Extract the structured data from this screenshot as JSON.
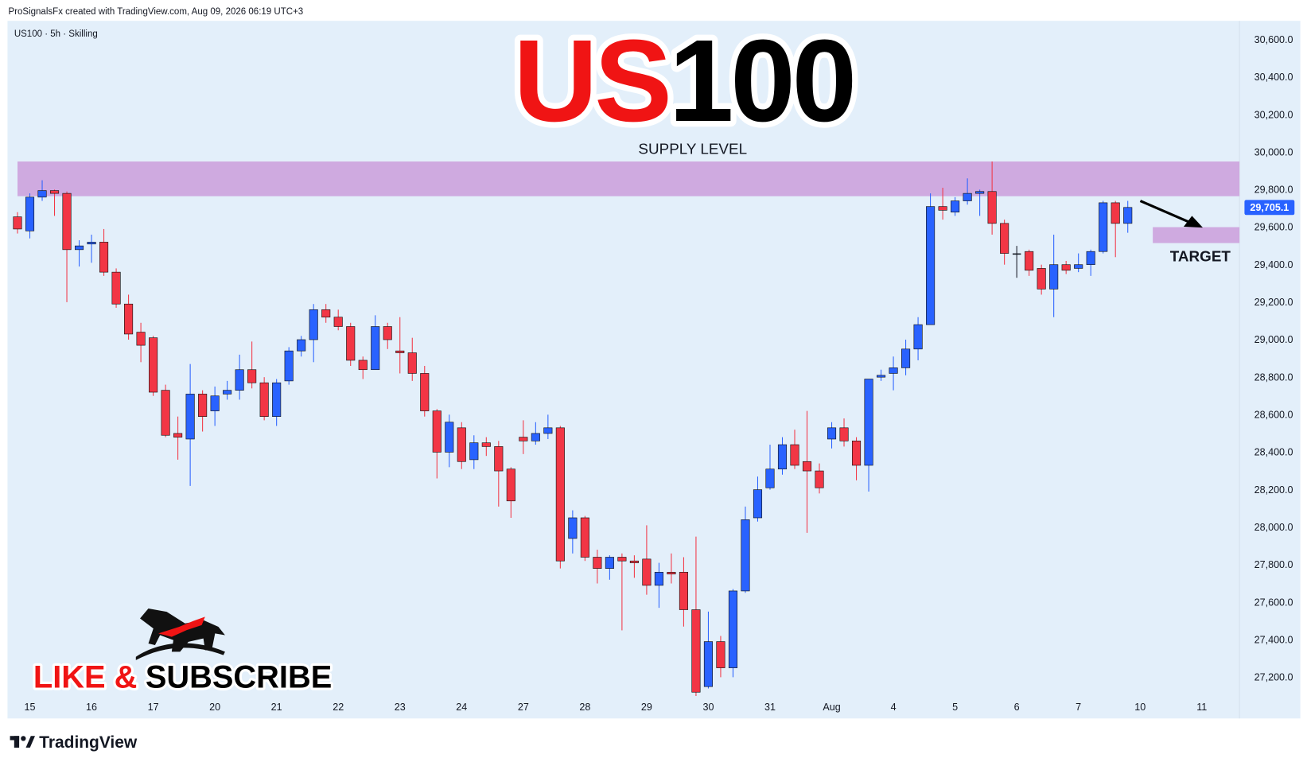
{
  "header": "ProSignalsFx created with TradingView.com, Aug 09, 2026 06:19 UTC+3",
  "symbol": "US100 · 5h · Skilling",
  "title_red": "US",
  "title_black": "100",
  "like": "LIKE &",
  "subscribe": "SUBSCRIBE",
  "brand": "TradingView",
  "chart_data": {
    "type": "candlestick",
    "up_color": "#2962ff",
    "down_color": "#f23645",
    "doji_color": "#131722",
    "grid": false,
    "categories": [
      null,
      "15",
      null,
      null,
      null,
      null,
      "16",
      null,
      null,
      null,
      null,
      "17",
      null,
      null,
      null,
      null,
      "20",
      null,
      null,
      null,
      null,
      "21",
      null,
      null,
      null,
      null,
      "22",
      null,
      null,
      null,
      null,
      "23",
      null,
      null,
      null,
      null,
      "24",
      null,
      null,
      null,
      null,
      "27",
      null,
      null,
      null,
      null,
      "28",
      null,
      null,
      null,
      null,
      "29",
      null,
      null,
      null,
      null,
      "30",
      null,
      null,
      null,
      null,
      "31",
      null,
      null,
      null,
      null,
      "Aug",
      null,
      null,
      null,
      null,
      "4",
      null,
      null,
      null,
      null,
      "5",
      null,
      null,
      null,
      null,
      "6",
      null,
      null,
      null,
      null,
      "7",
      null,
      null,
      null,
      null,
      "10",
      null,
      null,
      null,
      null,
      "11"
    ],
    "open": [
      29655,
      29580,
      29760,
      29795,
      29780,
      29480,
      29510,
      29520,
      29360,
      29190,
      29040,
      29010,
      28730,
      28500,
      28470,
      28710,
      28620,
      28710,
      28730,
      28840,
      28770,
      28590,
      28780,
      28940,
      29000,
      29160,
      29120,
      29070,
      28890,
      28840,
      29070,
      28940,
      28930,
      28820,
      28620,
      28400,
      28530,
      28360,
      28450,
      28430,
      28310,
      28480,
      28460,
      28500,
      28530,
      27940,
      28050,
      27840,
      27780,
      27840,
      27820,
      27830,
      27690,
      27760,
      27760,
      27560,
      27150,
      27390,
      27250,
      27660,
      28050,
      28210,
      28310,
      28440,
      28350,
      28300,
      28470,
      28530,
      28460,
      28330,
      28800,
      28820,
      28850,
      28950,
      29080,
      29710,
      29680,
      29740,
      29780,
      29790,
      29620,
      29460,
      29470,
      29380,
      29270,
      29400,
      29380,
      29400,
      29470,
      29730,
      29620,
      null,
      null,
      null,
      null,
      null,
      null
    ],
    "high": [
      29680,
      29780,
      29850,
      29800,
      29790,
      29530,
      29560,
      29590,
      29380,
      29240,
      29090,
      29020,
      28760,
      28590,
      28870,
      28730,
      28750,
      28780,
      28920,
      28990,
      28800,
      28790,
      28960,
      29020,
      29190,
      29190,
      29160,
      29090,
      28910,
      29130,
      29090,
      29120,
      29010,
      28860,
      28630,
      28600,
      28560,
      28490,
      28480,
      28460,
      28320,
      28570,
      28560,
      28600,
      28540,
      28090,
      28060,
      27880,
      27850,
      27860,
      27850,
      28010,
      27810,
      27860,
      27840,
      27950,
      27550,
      27420,
      27670,
      28110,
      28270,
      28440,
      28480,
      28520,
      28620,
      28340,
      28560,
      28580,
      28480,
      28790,
      28840,
      28910,
      29000,
      29120,
      29780,
      29810,
      29760,
      29860,
      29800,
      29950,
      29640,
      29500,
      29480,
      29400,
      29560,
      29420,
      29460,
      29480,
      29740,
      29740,
      29740,
      null,
      null,
      null,
      null,
      null,
      null
    ],
    "low": [
      29566,
      29540,
      29740,
      29660,
      29200,
      29390,
      29410,
      29340,
      29170,
      29000,
      28880,
      28700,
      28480,
      28360,
      28220,
      28510,
      28540,
      28680,
      28680,
      28740,
      28570,
      28540,
      28760,
      28910,
      28880,
      29090,
      29050,
      28860,
      28790,
      28840,
      28950,
      28820,
      28780,
      28590,
      28260,
      28320,
      28310,
      28310,
      28380,
      28110,
      28050,
      28390,
      28440,
      28470,
      27780,
      27860,
      27820,
      27700,
      27720,
      27450,
      27730,
      27640,
      27570,
      27700,
      27470,
      27100,
      27140,
      27200,
      27200,
      27650,
      28030,
      28200,
      28280,
      28310,
      27970,
      28180,
      28420,
      28430,
      28250,
      28190,
      28780,
      28730,
      28810,
      28890,
      29080,
      29640,
      29660,
      29720,
      29660,
      29560,
      29400,
      29330,
      29340,
      29240,
      29120,
      29350,
      29360,
      29340,
      29460,
      29440,
      29570,
      null,
      null,
      null,
      null,
      null,
      null
    ],
    "close": [
      29590,
      29760,
      29795,
      29780,
      29480,
      29500,
      29520,
      29360,
      29190,
      29030,
      28970,
      28720,
      28490,
      28480,
      28710,
      28590,
      28700,
      28730,
      28840,
      28770,
      28590,
      28770,
      28940,
      29000,
      29160,
      29120,
      29070,
      28890,
      28840,
      29070,
      29000,
      28930,
      28820,
      28620,
      28400,
      28560,
      28350,
      28450,
      28430,
      28300,
      28140,
      28460,
      28500,
      28530,
      27820,
      28050,
      27840,
      27780,
      27840,
      27820,
      27810,
      27690,
      27760,
      27750,
      27560,
      27120,
      27390,
      27250,
      27660,
      28040,
      28200,
      28310,
      28440,
      28330,
      28300,
      28210,
      28530,
      28460,
      28330,
      28790,
      28810,
      28850,
      28950,
      29080,
      29710,
      29690,
      29740,
      29780,
      29790,
      29620,
      29460,
      29460,
      29370,
      29270,
      29400,
      29370,
      29400,
      29470,
      29730,
      29620,
      29705.1,
      null,
      null,
      null,
      null,
      null,
      null
    ],
    "ylim": [
      26980,
      30700
    ],
    "yticks": [
      {
        "value": 27200,
        "label": "27,200.0"
      },
      {
        "value": 27400,
        "label": "27,400.0"
      },
      {
        "value": 27600,
        "label": "27,600.0"
      },
      {
        "value": 27800,
        "label": "27,800.0"
      },
      {
        "value": 28000,
        "label": "28,000.0"
      },
      {
        "value": 28200,
        "label": "28,200.0"
      },
      {
        "value": 28400,
        "label": "28,400.0"
      },
      {
        "value": 28600,
        "label": "28,600.0"
      },
      {
        "value": 28800,
        "label": "28,800.0"
      },
      {
        "value": 29000,
        "label": "29,000.0"
      },
      {
        "value": 29200,
        "label": "29,200.0"
      },
      {
        "value": 29400,
        "label": "29,400.0"
      },
      {
        "value": 29600,
        "label": "29,600.0"
      },
      {
        "value": 29800,
        "label": "29,800.0"
      },
      {
        "value": 30000,
        "label": "30,000.0"
      },
      {
        "value": 30200,
        "label": "30,200.0"
      },
      {
        "value": 30400,
        "label": "30,400.0"
      },
      {
        "value": 30600,
        "label": "30,600.0"
      }
    ],
    "last_price": {
      "value": 29705.1,
      "label": "29,705.1"
    },
    "zone_color": "#cfaae0",
    "zones": [
      {
        "label": "SUPPLY LEVEL",
        "ylim": [
          29765,
          29950
        ]
      },
      {
        "label": "TARGET",
        "ylim": [
          29515,
          29600
        ]
      }
    ]
  }
}
